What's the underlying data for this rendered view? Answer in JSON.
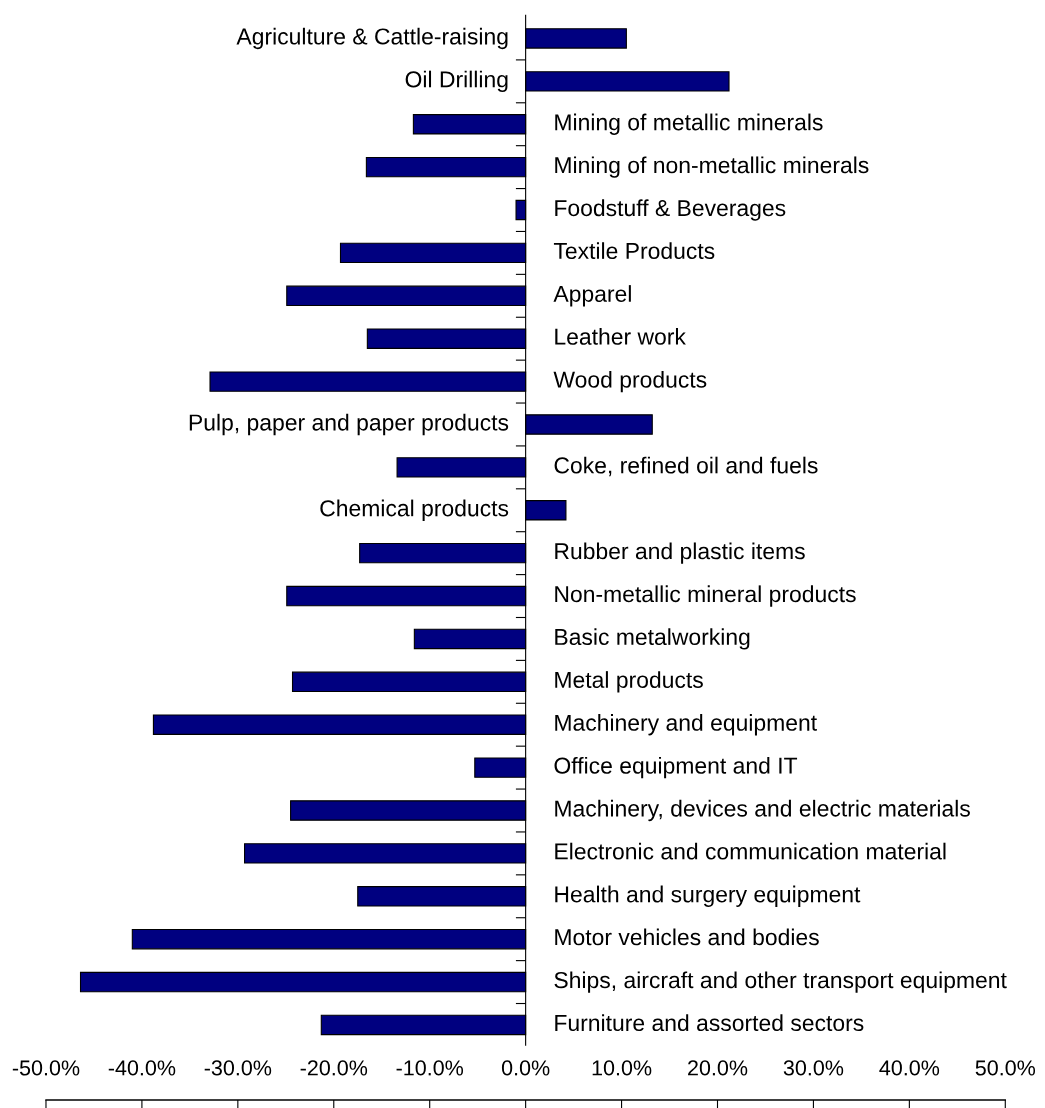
{
  "chart_data": {
    "type": "bar",
    "orientation": "horizontal",
    "categories": [
      "Agriculture & Cattle-raising",
      "Oil Drilling",
      "Mining of metallic minerals",
      "Mining of non-metallic minerals",
      "Foodstuff & Beverages",
      "Textile Products",
      "Apparel",
      "Leather work",
      "Wood products",
      "Pulp, paper and paper products",
      "Coke, refined oil and fuels",
      "Chemical products",
      "Rubber and plastic items",
      "Non-metallic mineral products",
      "Basic metalworking",
      "Metal products",
      "Machinery and equipment",
      "Office equipment and IT",
      "Machinery, devices and electric materials",
      "Electronic and communication material",
      "Health and surgery equipment",
      "Motor vehicles and bodies",
      "Ships, aircraft and other transport equipment",
      "Furniture and assorted sectors"
    ],
    "values": [
      10.5,
      21.2,
      -11.7,
      -16.6,
      -1.0,
      -19.3,
      -24.9,
      -16.5,
      -32.9,
      13.2,
      -13.4,
      4.2,
      -17.3,
      -24.9,
      -11.6,
      -24.3,
      -38.8,
      -5.3,
      -24.5,
      -29.3,
      -17.5,
      -41.0,
      -46.4,
      -21.3
    ],
    "color": "#000080",
    "xlim": [
      -50,
      50
    ],
    "xticks": [
      {
        "value": -50,
        "label": "-50.0%"
      },
      {
        "value": -40,
        "label": "-40.0%"
      },
      {
        "value": -30,
        "label": "-30.0%"
      },
      {
        "value": -20,
        "label": "-20.0%"
      },
      {
        "value": -10,
        "label": "-10.0%"
      },
      {
        "value": 0,
        "label": "0.0%"
      },
      {
        "value": 10,
        "label": "10.0%"
      },
      {
        "value": 20,
        "label": "20.0%"
      },
      {
        "value": 30,
        "label": "30.0%"
      },
      {
        "value": 40,
        "label": "40.0%"
      },
      {
        "value": 50,
        "label": "50.0%"
      }
    ],
    "grid": false
  }
}
